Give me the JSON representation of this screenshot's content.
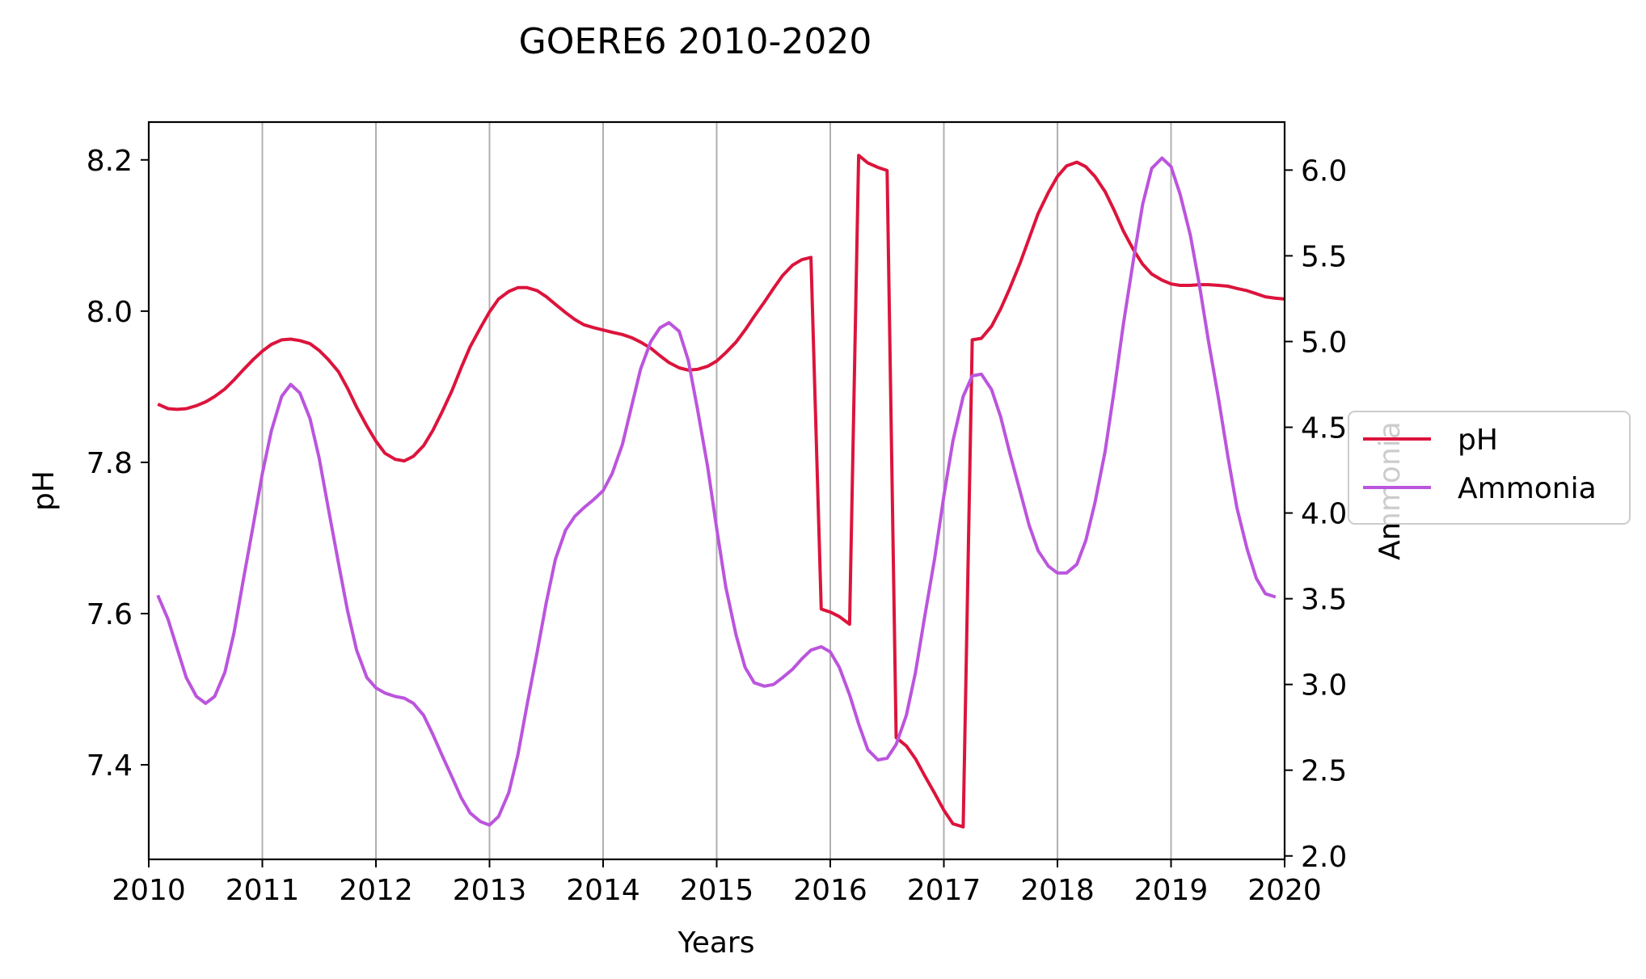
{
  "chart_data": {
    "type": "line",
    "title": "GOERE6 2010-2020",
    "xlabel": "Years",
    "ylabel_left": "pH",
    "ylabel_right": "Ammonia",
    "xlim": [
      2010,
      2020
    ],
    "ylim_left": [
      7.275,
      8.25
    ],
    "ylim_right": [
      1.98,
      6.28
    ],
    "x_ticks": [
      "2010",
      "2011",
      "2012",
      "2013",
      "2014",
      "2015",
      "2016",
      "2017",
      "2018",
      "2019",
      "2020"
    ],
    "y_ticks_left": [
      "7.4",
      "7.6",
      "7.8",
      "8.0",
      "8.2"
    ],
    "y_ticks_right": [
      "2.0",
      "2.5",
      "3.0",
      "3.5",
      "4.0",
      "4.5",
      "5.0",
      "5.5",
      "6.0"
    ],
    "grid": "vertical",
    "legend_position": "right",
    "series": [
      {
        "name": "pH",
        "axis": "left",
        "color": "#dc143c",
        "points": [
          [
            2010.08,
            7.877
          ],
          [
            2010.17,
            7.871
          ],
          [
            2010.25,
            7.87
          ],
          [
            2010.33,
            7.871
          ],
          [
            2010.42,
            7.875
          ],
          [
            2010.5,
            7.88
          ],
          [
            2010.58,
            7.887
          ],
          [
            2010.67,
            7.897
          ],
          [
            2010.75,
            7.909
          ],
          [
            2010.83,
            7.922
          ],
          [
            2010.92,
            7.936
          ],
          [
            2011.0,
            7.947
          ],
          [
            2011.08,
            7.956
          ],
          [
            2011.17,
            7.962
          ],
          [
            2011.25,
            7.963
          ],
          [
            2011.33,
            7.961
          ],
          [
            2011.42,
            7.957
          ],
          [
            2011.5,
            7.948
          ],
          [
            2011.58,
            7.936
          ],
          [
            2011.67,
            7.92
          ],
          [
            2011.75,
            7.898
          ],
          [
            2011.83,
            7.873
          ],
          [
            2011.92,
            7.848
          ],
          [
            2012.0,
            7.828
          ],
          [
            2012.08,
            7.812
          ],
          [
            2012.17,
            7.804
          ],
          [
            2012.25,
            7.802
          ],
          [
            2012.33,
            7.808
          ],
          [
            2012.42,
            7.822
          ],
          [
            2012.5,
            7.842
          ],
          [
            2012.58,
            7.866
          ],
          [
            2012.67,
            7.895
          ],
          [
            2012.75,
            7.925
          ],
          [
            2012.83,
            7.953
          ],
          [
            2012.92,
            7.978
          ],
          [
            2013.0,
            7.999
          ],
          [
            2013.08,
            8.016
          ],
          [
            2013.17,
            8.026
          ],
          [
            2013.25,
            8.031
          ],
          [
            2013.33,
            8.031
          ],
          [
            2013.42,
            8.027
          ],
          [
            2013.5,
            8.019
          ],
          [
            2013.58,
            8.009
          ],
          [
            2013.67,
            7.998
          ],
          [
            2013.75,
            7.989
          ],
          [
            2013.83,
            7.982
          ],
          [
            2013.92,
            7.978
          ],
          [
            2014.0,
            7.975
          ],
          [
            2014.08,
            7.972
          ],
          [
            2014.17,
            7.969
          ],
          [
            2014.25,
            7.965
          ],
          [
            2014.33,
            7.959
          ],
          [
            2014.42,
            7.951
          ],
          [
            2014.5,
            7.941
          ],
          [
            2014.58,
            7.932
          ],
          [
            2014.67,
            7.925
          ],
          [
            2014.75,
            7.922
          ],
          [
            2014.83,
            7.923
          ],
          [
            2014.92,
            7.927
          ],
          [
            2015.0,
            7.934
          ],
          [
            2015.08,
            7.945
          ],
          [
            2015.17,
            7.959
          ],
          [
            2015.25,
            7.975
          ],
          [
            2015.33,
            7.993
          ],
          [
            2015.42,
            8.012
          ],
          [
            2015.5,
            8.03
          ],
          [
            2015.58,
            8.047
          ],
          [
            2015.67,
            8.061
          ],
          [
            2015.75,
            8.068
          ],
          [
            2015.83,
            8.071
          ],
          [
            2015.92,
            7.606
          ],
          [
            2016.0,
            7.602
          ],
          [
            2016.08,
            7.596
          ],
          [
            2016.17,
            7.586
          ],
          [
            2016.25,
            8.206
          ],
          [
            2016.33,
            8.196
          ],
          [
            2016.42,
            8.19
          ],
          [
            2016.5,
            8.186
          ],
          [
            2016.58,
            7.436
          ],
          [
            2016.67,
            7.425
          ],
          [
            2016.75,
            7.408
          ],
          [
            2016.83,
            7.386
          ],
          [
            2016.92,
            7.362
          ],
          [
            2017.0,
            7.34
          ],
          [
            2017.08,
            7.322
          ],
          [
            2017.17,
            7.318
          ],
          [
            2017.25,
            7.962
          ],
          [
            2017.33,
            7.964
          ],
          [
            2017.42,
            7.98
          ],
          [
            2017.5,
            8.003
          ],
          [
            2017.58,
            8.03
          ],
          [
            2017.67,
            8.063
          ],
          [
            2017.75,
            8.096
          ],
          [
            2017.83,
            8.129
          ],
          [
            2017.92,
            8.157
          ],
          [
            2018.0,
            8.178
          ],
          [
            2018.08,
            8.192
          ],
          [
            2018.17,
            8.197
          ],
          [
            2018.25,
            8.191
          ],
          [
            2018.33,
            8.178
          ],
          [
            2018.42,
            8.158
          ],
          [
            2018.5,
            8.133
          ],
          [
            2018.58,
            8.106
          ],
          [
            2018.67,
            8.081
          ],
          [
            2018.75,
            8.062
          ],
          [
            2018.83,
            8.049
          ],
          [
            2018.92,
            8.041
          ],
          [
            2019.0,
            8.036
          ],
          [
            2019.08,
            8.034
          ],
          [
            2019.17,
            8.034
          ],
          [
            2019.25,
            8.035
          ],
          [
            2019.33,
            8.035
          ],
          [
            2019.42,
            8.034
          ],
          [
            2019.5,
            8.033
          ],
          [
            2019.58,
            8.03
          ],
          [
            2019.67,
            8.027
          ],
          [
            2019.75,
            8.023
          ],
          [
            2019.83,
            8.019
          ],
          [
            2019.92,
            8.017
          ],
          [
            2020.0,
            8.016
          ]
        ]
      },
      {
        "name": "Ammonia",
        "axis": "right",
        "color": "#bb55dd",
        "points": [
          [
            2010.08,
            3.52
          ],
          [
            2010.17,
            3.38
          ],
          [
            2010.25,
            3.21
          ],
          [
            2010.33,
            3.04
          ],
          [
            2010.42,
            2.93
          ],
          [
            2010.5,
            2.89
          ],
          [
            2010.58,
            2.93
          ],
          [
            2010.67,
            3.07
          ],
          [
            2010.75,
            3.3
          ],
          [
            2010.83,
            3.6
          ],
          [
            2010.92,
            3.93
          ],
          [
            2011.0,
            4.23
          ],
          [
            2011.08,
            4.48
          ],
          [
            2011.17,
            4.68
          ],
          [
            2011.25,
            4.75
          ],
          [
            2011.33,
            4.7
          ],
          [
            2011.42,
            4.55
          ],
          [
            2011.5,
            4.32
          ],
          [
            2011.58,
            4.03
          ],
          [
            2011.67,
            3.71
          ],
          [
            2011.75,
            3.43
          ],
          [
            2011.83,
            3.2
          ],
          [
            2011.92,
            3.04
          ],
          [
            2012.0,
            2.98
          ],
          [
            2012.08,
            2.95
          ],
          [
            2012.17,
            2.93
          ],
          [
            2012.25,
            2.92
          ],
          [
            2012.33,
            2.89
          ],
          [
            2012.42,
            2.82
          ],
          [
            2012.5,
            2.71
          ],
          [
            2012.58,
            2.59
          ],
          [
            2012.67,
            2.46
          ],
          [
            2012.75,
            2.34
          ],
          [
            2012.83,
            2.25
          ],
          [
            2012.92,
            2.2
          ],
          [
            2013.0,
            2.18
          ],
          [
            2013.08,
            2.23
          ],
          [
            2013.17,
            2.37
          ],
          [
            2013.25,
            2.59
          ],
          [
            2013.33,
            2.88
          ],
          [
            2013.42,
            3.19
          ],
          [
            2013.5,
            3.48
          ],
          [
            2013.58,
            3.73
          ],
          [
            2013.67,
            3.9
          ],
          [
            2013.75,
            3.98
          ],
          [
            2013.83,
            4.03
          ],
          [
            2013.92,
            4.08
          ],
          [
            2014.0,
            4.13
          ],
          [
            2014.08,
            4.23
          ],
          [
            2014.17,
            4.4
          ],
          [
            2014.25,
            4.62
          ],
          [
            2014.33,
            4.84
          ],
          [
            2014.42,
            5.0
          ],
          [
            2014.5,
            5.08
          ],
          [
            2014.58,
            5.11
          ],
          [
            2014.67,
            5.06
          ],
          [
            2014.75,
            4.89
          ],
          [
            2014.83,
            4.61
          ],
          [
            2014.92,
            4.27
          ],
          [
            2015.0,
            3.91
          ],
          [
            2015.08,
            3.57
          ],
          [
            2015.17,
            3.29
          ],
          [
            2015.25,
            3.1
          ],
          [
            2015.33,
            3.01
          ],
          [
            2015.42,
            2.99
          ],
          [
            2015.5,
            3.0
          ],
          [
            2015.58,
            3.04
          ],
          [
            2015.67,
            3.09
          ],
          [
            2015.75,
            3.15
          ],
          [
            2015.83,
            3.2
          ],
          [
            2015.92,
            3.22
          ],
          [
            2016.0,
            3.19
          ],
          [
            2016.08,
            3.1
          ],
          [
            2016.17,
            2.94
          ],
          [
            2016.25,
            2.77
          ],
          [
            2016.33,
            2.62
          ],
          [
            2016.42,
            2.56
          ],
          [
            2016.5,
            2.57
          ],
          [
            2016.58,
            2.65
          ],
          [
            2016.67,
            2.82
          ],
          [
            2016.75,
            3.07
          ],
          [
            2016.83,
            3.39
          ],
          [
            2016.92,
            3.74
          ],
          [
            2017.0,
            4.1
          ],
          [
            2017.08,
            4.42
          ],
          [
            2017.17,
            4.68
          ],
          [
            2017.25,
            4.8
          ],
          [
            2017.33,
            4.81
          ],
          [
            2017.42,
            4.72
          ],
          [
            2017.5,
            4.56
          ],
          [
            2017.58,
            4.35
          ],
          [
            2017.67,
            4.13
          ],
          [
            2017.75,
            3.93
          ],
          [
            2017.83,
            3.78
          ],
          [
            2017.92,
            3.69
          ],
          [
            2018.0,
            3.65
          ],
          [
            2018.08,
            3.65
          ],
          [
            2018.17,
            3.7
          ],
          [
            2018.25,
            3.84
          ],
          [
            2018.33,
            4.06
          ],
          [
            2018.42,
            4.36
          ],
          [
            2018.5,
            4.72
          ],
          [
            2018.58,
            5.1
          ],
          [
            2018.67,
            5.48
          ],
          [
            2018.75,
            5.8
          ],
          [
            2018.83,
            6.01
          ],
          [
            2018.92,
            6.07
          ],
          [
            2019.0,
            6.02
          ],
          [
            2019.08,
            5.86
          ],
          [
            2019.17,
            5.62
          ],
          [
            2019.25,
            5.33
          ],
          [
            2019.33,
            5.0
          ],
          [
            2019.42,
            4.66
          ],
          [
            2019.5,
            4.33
          ],
          [
            2019.58,
            4.03
          ],
          [
            2019.67,
            3.79
          ],
          [
            2019.75,
            3.62
          ],
          [
            2019.83,
            3.53
          ],
          [
            2019.92,
            3.51
          ]
        ]
      }
    ]
  }
}
